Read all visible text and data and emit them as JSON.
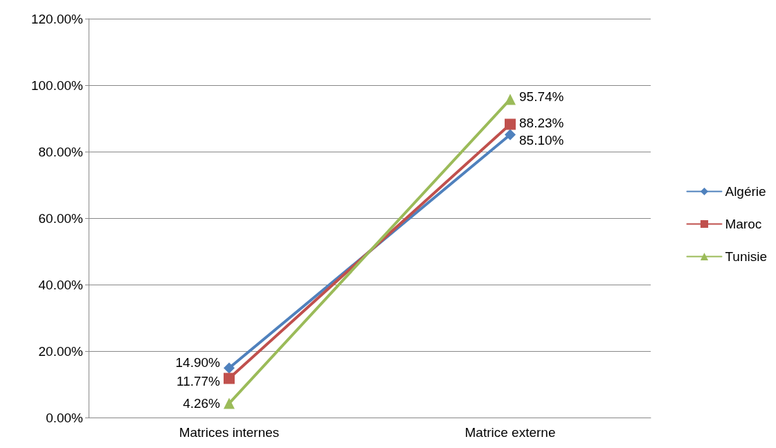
{
  "chart_data": {
    "type": "line",
    "categories": [
      "Matrices internes",
      "Matrice externe"
    ],
    "series": [
      {
        "name": "Algérie",
        "color": "#4f81bd",
        "marker": "diamond",
        "values": [
          14.9,
          85.1
        ],
        "value_labels": [
          "14.90%",
          "85.10%"
        ]
      },
      {
        "name": "Maroc",
        "color": "#c0504d",
        "marker": "square",
        "values": [
          11.77,
          88.23
        ],
        "value_labels": [
          "11.77%",
          "88.23%"
        ]
      },
      {
        "name": "Tunisie",
        "color": "#9bbb59",
        "marker": "triangle",
        "values": [
          4.26,
          95.74
        ],
        "value_labels": [
          "4.26%",
          "95.74%"
        ]
      }
    ],
    "ylim": [
      0,
      120
    ],
    "yticks": [
      {
        "value": 0,
        "label": "0.00%"
      },
      {
        "value": 20,
        "label": "20.00%"
      },
      {
        "value": 40,
        "label": "40.00%"
      },
      {
        "value": 60,
        "label": "60.00%"
      },
      {
        "value": 80,
        "label": "80.00%"
      },
      {
        "value": 100,
        "label": "100.00%"
      },
      {
        "value": 120,
        "label": "120.00%"
      }
    ],
    "grid": "y",
    "legend": "right"
  }
}
